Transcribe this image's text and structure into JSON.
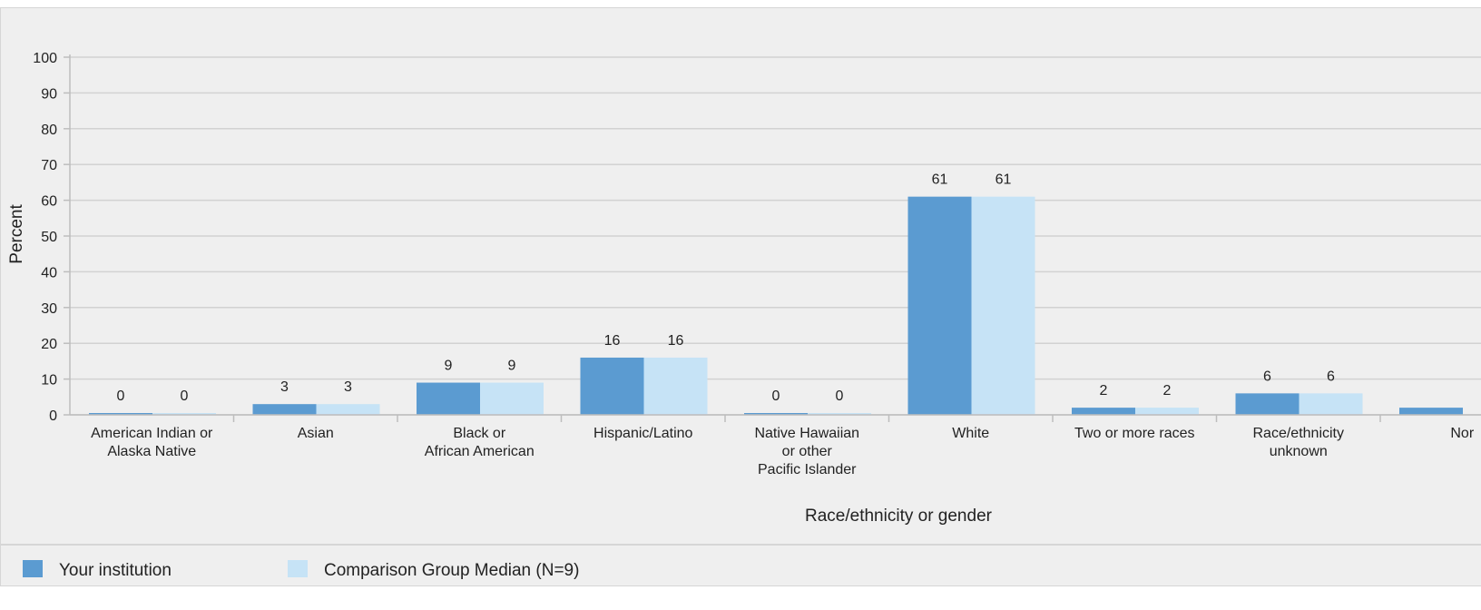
{
  "chart_data": {
    "type": "bar",
    "title": "",
    "xlabel": "Race/ethnicity or gender",
    "ylabel": "Percent",
    "ylim": [
      0,
      100
    ],
    "yticks": [
      0,
      10,
      20,
      30,
      40,
      50,
      60,
      70,
      80,
      90,
      100
    ],
    "grid": true,
    "legend_position": "bottom",
    "categories": [
      [
        "American Indian or",
        "Alaska Native"
      ],
      [
        "Asian"
      ],
      [
        "Black or",
        "African American"
      ],
      [
        "Hispanic/Latino"
      ],
      [
        "Native Hawaiian",
        "or other",
        "Pacific Islander"
      ],
      [
        "White"
      ],
      [
        "Two or more races"
      ],
      [
        "Race/ethnicity",
        "unknown"
      ],
      [
        "Nor"
      ]
    ],
    "series": [
      {
        "name": "Your institution",
        "color": "#5b9bd1",
        "values": [
          0,
          3,
          9,
          16,
          0,
          61,
          2,
          6,
          2
        ],
        "labels": [
          "0",
          "3",
          "9",
          "16",
          "0",
          "61",
          "2",
          "6",
          ""
        ]
      },
      {
        "name": "Comparison Group Median (N=9)",
        "color": "#c6e3f6",
        "values": [
          0,
          3,
          9,
          16,
          0,
          61,
          2,
          6,
          null
        ],
        "labels": [
          "0",
          "3",
          "9",
          "16",
          "0",
          "61",
          "2",
          "6",
          ""
        ]
      }
    ]
  }
}
